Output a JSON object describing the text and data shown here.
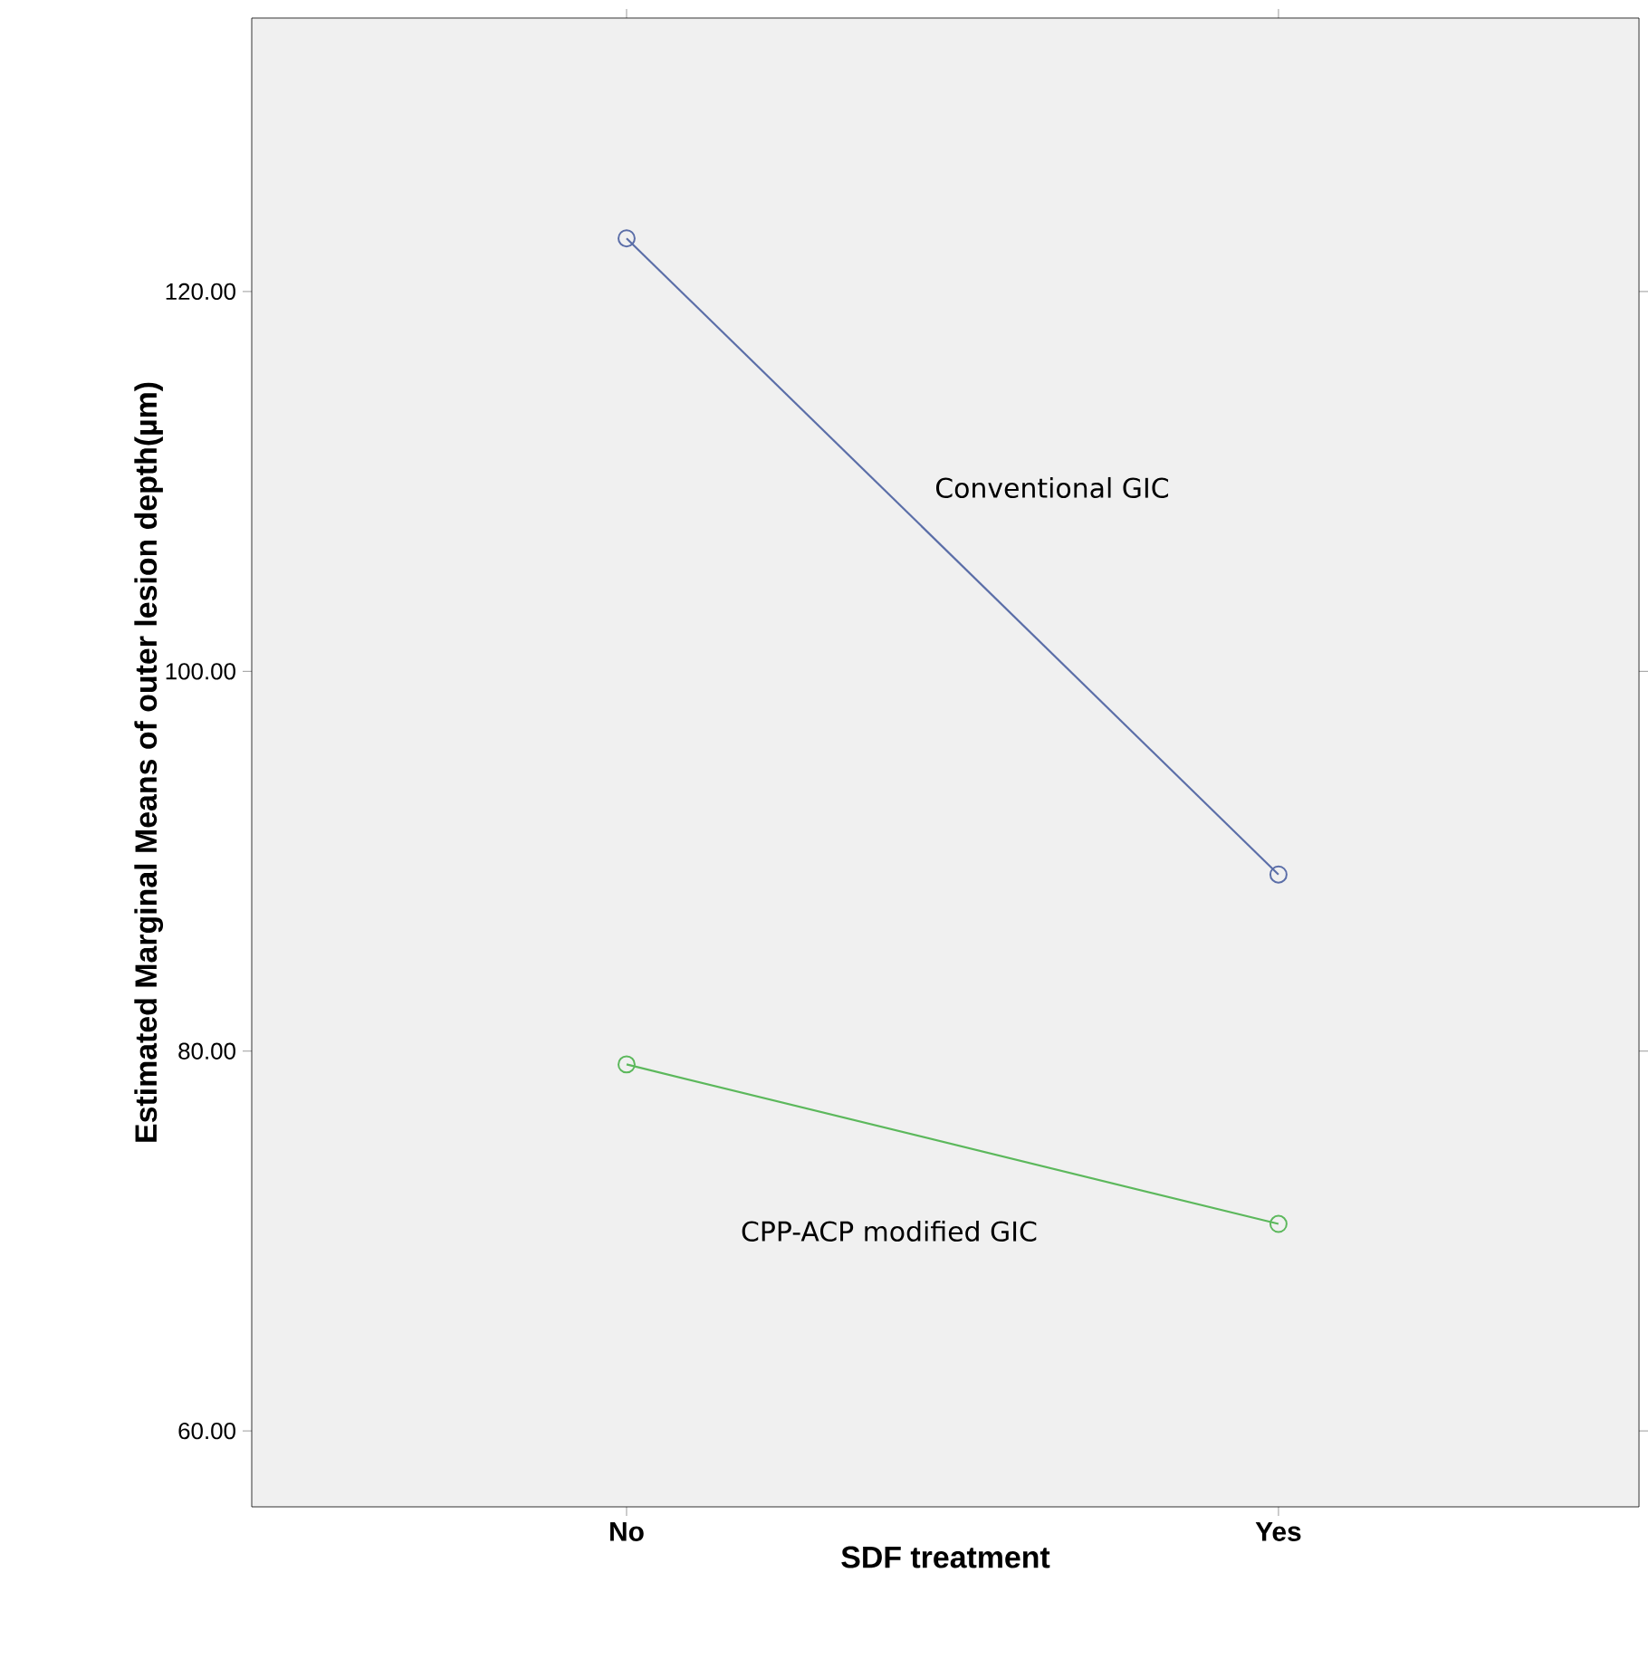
{
  "chart_data": {
    "type": "line",
    "xlabel": "SDF treatment",
    "ylabel": "Estimated Marginal Means of outer lesion depth(µm)",
    "categories": [
      "No",
      "Yes"
    ],
    "series": [
      {
        "name": "Conventional GIC",
        "color": "#5b6ea8",
        "values": [
          122.8,
          89.3
        ]
      },
      {
        "name": "CPP-ACP modified GIC",
        "color": "#5cb85c",
        "values": [
          79.3,
          70.9
        ]
      }
    ],
    "ylim": [
      56,
      134.4
    ],
    "yticks": [
      {
        "value": 60,
        "label": "60.00"
      },
      {
        "value": 80,
        "label": "80.00"
      },
      {
        "value": 100,
        "label": "100.00"
      },
      {
        "value": 120,
        "label": "120.00"
      }
    ],
    "marker": "circle",
    "line_style": "solid"
  }
}
